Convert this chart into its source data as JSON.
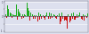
{
  "background_color": "#dde0ee",
  "plot_bg": "#dde0ee",
  "grid_color": "#ffffff",
  "bar_width": 0.85,
  "ylim": [
    -1.05,
    1.05
  ],
  "n_bars": 78,
  "green": "#1faa1f",
  "red": "#cc1111",
  "gray": "#888899",
  "dark_gray": "#555566",
  "axis_color": "#444455",
  "zero_line_color": "#333344",
  "values": [
    0.18,
    -0.12,
    0.75,
    0.5,
    0.3,
    0.22,
    -0.08,
    0.16,
    0.12,
    0.1,
    0.85,
    -0.22,
    0.55,
    0.35,
    0.2,
    -0.18,
    0.14,
    -0.1,
    0.18,
    0.08,
    0.95,
    0.6,
    0.4,
    -0.28,
    0.25,
    0.15,
    -0.14,
    0.12,
    -0.16,
    0.09,
    -0.35,
    0.28,
    -0.22,
    0.18,
    -0.15,
    0.12,
    -0.1,
    -0.2,
    0.08,
    0.3,
    -0.18,
    0.25,
    -0.14,
    0.22,
    -0.12,
    0.18,
    0.1,
    -0.09,
    -0.16,
    0.07,
    0.2,
    -0.55,
    -0.35,
    0.28,
    -0.18,
    -0.25,
    -0.22,
    -0.3,
    -0.82,
    0.15,
    -0.4,
    -0.25,
    0.22,
    -0.18,
    0.25,
    -0.2,
    -0.12,
    0.14,
    -0.1,
    0.09,
    0.3,
    -0.15,
    -0.22,
    0.18,
    -0.28,
    0.12,
    -0.08,
    0.2
  ]
}
